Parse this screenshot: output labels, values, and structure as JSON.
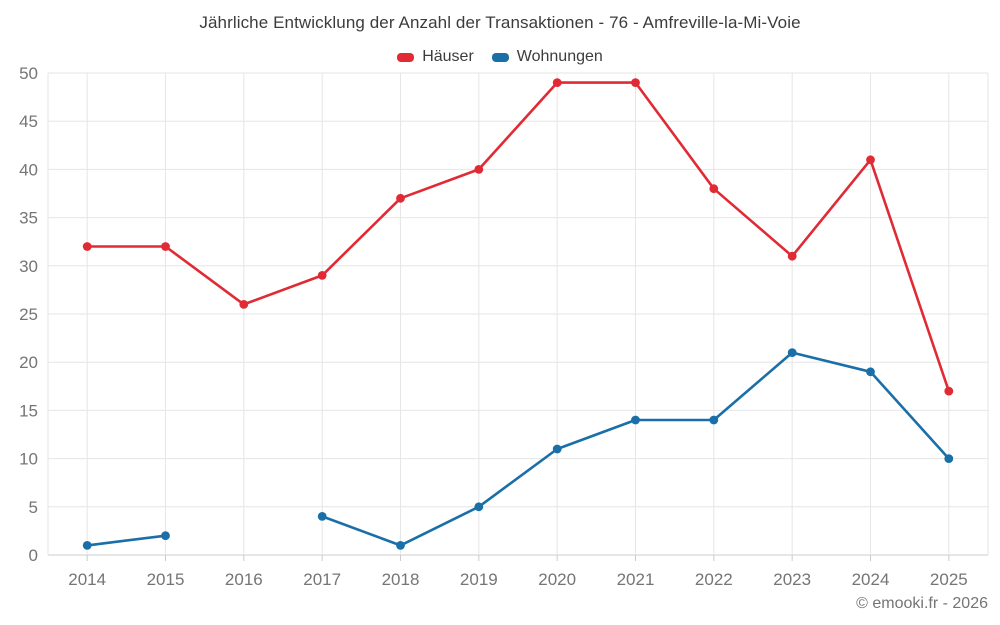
{
  "theme": {
    "background": "#ffffff",
    "grid_color": "#e6e6e6",
    "axis_color": "#cccccc",
    "tick_text_color": "#757575",
    "title_color": "#3c3c3c",
    "credit_color": "#757575"
  },
  "footer": {
    "credit": "© emooki.fr - 2026"
  },
  "chart_data": {
    "type": "line",
    "title": "Jährliche Entwicklung der Anzahl der Transaktionen - 76 - Amfreville-la-Mi-Voie",
    "xlabel": "",
    "ylabel": "",
    "grid": true,
    "legend_position": "top-center",
    "categories": [
      "2014",
      "2015",
      "2016",
      "2017",
      "2018",
      "2019",
      "2020",
      "2021",
      "2022",
      "2023",
      "2024",
      "2025"
    ],
    "series": [
      {
        "name": "Häuser",
        "color": "#e02b35",
        "values": [
          32,
          32,
          26,
          29,
          37,
          40,
          49,
          49,
          38,
          31,
          41,
          17
        ]
      },
      {
        "name": "Wohnungen",
        "color": "#1a6fa8",
        "values": [
          1,
          2,
          null,
          4,
          1,
          5,
          11,
          14,
          14,
          21,
          19,
          10
        ]
      }
    ],
    "ylim": [
      0,
      50
    ],
    "ytick_step": 5,
    "y_ticks": [
      0,
      5,
      10,
      15,
      20,
      25,
      30,
      35,
      40,
      45,
      50
    ],
    "marker": "circle",
    "missing_points": [
      {
        "series": "Wohnungen",
        "category": "2016"
      }
    ]
  }
}
